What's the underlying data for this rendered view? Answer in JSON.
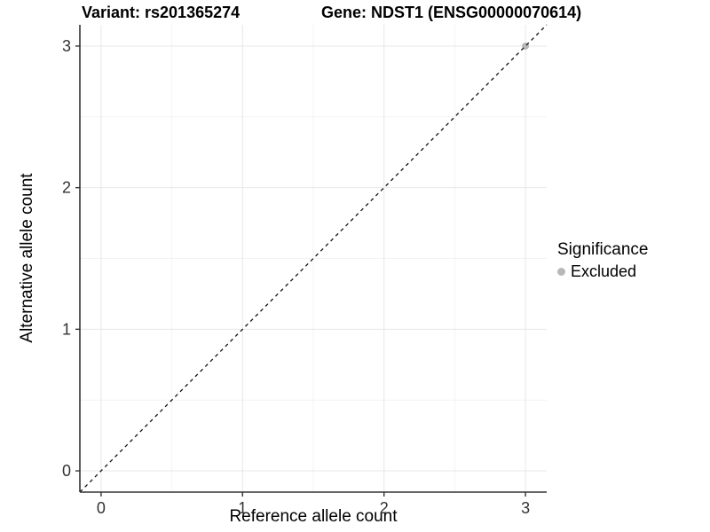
{
  "header": {
    "variant_title": "Variant: rs201365274",
    "gene_title": "Gene: NDST1 (ENSG00000070614)"
  },
  "legend": {
    "title": "Significance",
    "entries": [
      {
        "label": "Excluded",
        "color": "#b8b8b8",
        "icon": "dot-icon"
      }
    ]
  },
  "chart_data": {
    "type": "scatter",
    "title_left": "Variant: rs201365274",
    "title_right": "Gene: NDST1 (ENSG00000070614)",
    "xlabel": "Reference allele count",
    "ylabel": "Alternative allele count",
    "xlim": [
      -0.15,
      3.15
    ],
    "ylim": [
      -0.15,
      3.15
    ],
    "x_ticks": [
      0,
      1,
      2,
      3
    ],
    "y_ticks": [
      0,
      1,
      2,
      3
    ],
    "x_minor_ticks": [
      0.5,
      1.5,
      2.5
    ],
    "y_minor_ticks": [
      0.5,
      1.5,
      2.5
    ],
    "grid": true,
    "legend_position": "right",
    "legend_title": "Significance",
    "series": [
      {
        "name": "Excluded",
        "color": "#b8b8b8",
        "points": [
          [
            3,
            3
          ]
        ]
      }
    ],
    "reference_line": {
      "slope": 1,
      "intercept": 0,
      "style": "dashed",
      "color": "#111111"
    }
  },
  "colors": {
    "background": "#ffffff",
    "major_grid": "#e7e7e7",
    "minor_grid": "#f3f3f3",
    "axis_line": "#333333",
    "tick_mark": "#333333",
    "tick_label": "#333333",
    "point": "#b8b8b8",
    "dashed_line": "#111111"
  }
}
